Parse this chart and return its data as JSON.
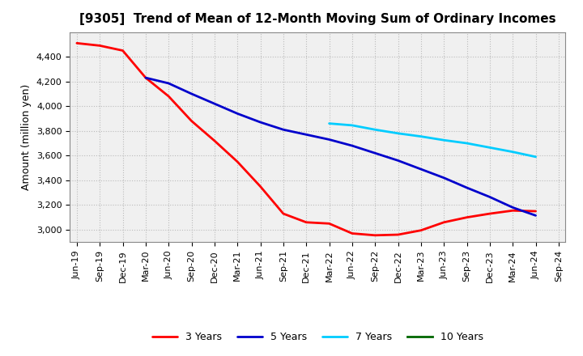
{
  "title": "[9305]  Trend of Mean of 12-Month Moving Sum of Ordinary Incomes",
  "ylabel": "Amount (million yen)",
  "background_color": "#ffffff",
  "plot_bg_color": "#f0f0f0",
  "grid_color": "#bbbbbb",
  "ylim": [
    2900,
    4600
  ],
  "yticks": [
    3000,
    3200,
    3400,
    3600,
    3800,
    4000,
    4200,
    4400
  ],
  "series": {
    "3 Years": {
      "color": "#ff0000",
      "data": {
        "Jun-19": 4510,
        "Sep-19": 4490,
        "Dec-19": 4450,
        "Mar-20": 4230,
        "Jun-20": 4080,
        "Sep-20": 3880,
        "Dec-20": 3720,
        "Mar-21": 3550,
        "Jun-21": 3350,
        "Sep-21": 3130,
        "Dec-21": 3060,
        "Mar-22": 3050,
        "Jun-22": 2970,
        "Sep-22": 2955,
        "Dec-22": 2960,
        "Mar-23": 2995,
        "Jun-23": 3060,
        "Sep-23": 3100,
        "Dec-23": 3130,
        "Mar-24": 3155,
        "Jun-24": 3150
      }
    },
    "5 Years": {
      "color": "#0000cc",
      "data": {
        "Mar-20": 4230,
        "Jun-20": 4185,
        "Sep-20": 4100,
        "Dec-20": 4020,
        "Mar-21": 3940,
        "Jun-21": 3870,
        "Sep-21": 3810,
        "Dec-21": 3770,
        "Mar-22": 3730,
        "Jun-22": 3680,
        "Sep-22": 3620,
        "Dec-22": 3560,
        "Mar-23": 3490,
        "Jun-23": 3420,
        "Sep-23": 3340,
        "Dec-23": 3265,
        "Mar-24": 3180,
        "Jun-24": 3115
      }
    },
    "7 Years": {
      "color": "#00ccff",
      "data": {
        "Mar-22": 3860,
        "Jun-22": 3845,
        "Sep-22": 3810,
        "Dec-22": 3780,
        "Mar-23": 3755,
        "Jun-23": 3725,
        "Sep-23": 3700,
        "Dec-23": 3665,
        "Mar-24": 3630,
        "Jun-24": 3590
      }
    },
    "10 Years": {
      "color": "#006600",
      "data": {}
    }
  },
  "x_tick_labels": [
    "Jun-19",
    "Sep-19",
    "Dec-19",
    "Mar-20",
    "Jun-20",
    "Sep-20",
    "Dec-20",
    "Mar-21",
    "Jun-21",
    "Sep-21",
    "Dec-21",
    "Mar-22",
    "Jun-22",
    "Sep-22",
    "Dec-22",
    "Mar-23",
    "Jun-23",
    "Sep-23",
    "Dec-23",
    "Mar-24",
    "Jun-24",
    "Sep-24"
  ],
  "title_fontsize": 11,
  "ylabel_fontsize": 9,
  "legend_fontsize": 9,
  "tick_fontsize": 8
}
